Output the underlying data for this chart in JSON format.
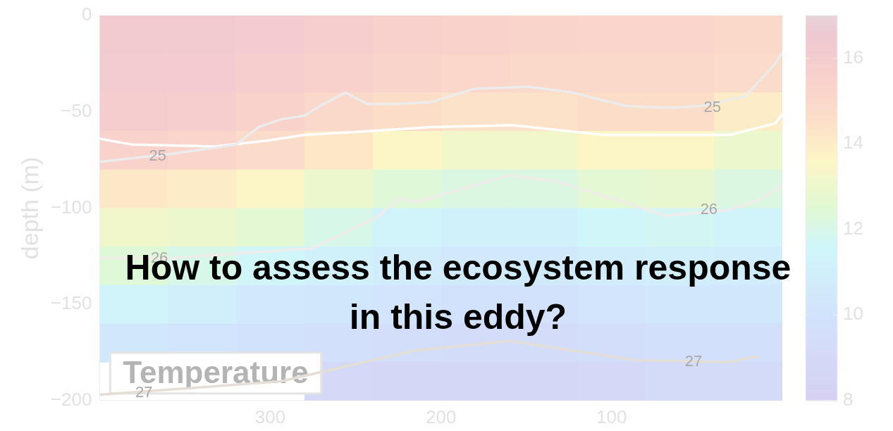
{
  "chart_data": {
    "type": "heatmap",
    "title": "How to assess the ecosystem response in this eddy?",
    "ylabel": "depth (m)",
    "annotations": [
      "Temperature",
      {
        "text": "25",
        "x": 366,
        "y": -73
      },
      {
        "text": "25",
        "x": 41,
        "y": -48
      },
      {
        "text": "26",
        "x": 365,
        "y": -126
      },
      {
        "text": "26",
        "x": 43,
        "y": -101
      },
      {
        "text": "27",
        "x": 374,
        "y": -196
      },
      {
        "text": "27",
        "x": 52,
        "y": -180
      }
    ],
    "x": [
      380,
      340,
      300,
      260,
      220,
      180,
      140,
      100,
      60,
      20
    ],
    "cells": [
      [
        16.2,
        16.2,
        16,
        15.8,
        15.6,
        15.4,
        15.3,
        15.2,
        15.2,
        15
      ],
      [
        16.1,
        16,
        15.8,
        15.6,
        15.3,
        15.1,
        15,
        15,
        15,
        14.8
      ],
      [
        15.9,
        15.8,
        15.4,
        15,
        14.6,
        14.4,
        14.4,
        14.6,
        14.6,
        14
      ],
      [
        15.4,
        15.2,
        14.8,
        14.2,
        13.6,
        13.2,
        13.2,
        13.6,
        13.6,
        13
      ],
      [
        14.2,
        14,
        13.6,
        13,
        12.4,
        12.2,
        12.2,
        12.6,
        12.8,
        12.2
      ],
      [
        13.2,
        13,
        12.6,
        12,
        11.4,
        11.2,
        11.2,
        11.6,
        11.8,
        11.4
      ],
      [
        12.4,
        12,
        11.6,
        11.2,
        10.8,
        10.6,
        10.6,
        10.8,
        11,
        10.8
      ],
      [
        11.4,
        11,
        10.6,
        10.4,
        10.2,
        10,
        10,
        10.2,
        10.4,
        10.4
      ],
      [
        10.4,
        10.2,
        10,
        9.8,
        9.6,
        9.4,
        9.4,
        9.6,
        9.8,
        9.8
      ],
      [
        null,
        null,
        null,
        9,
        8.8,
        8.8,
        8.8,
        9,
        9.2,
        9.2
      ]
    ],
    "clim": [
      8,
      17
    ],
    "cticks": [
      8,
      10,
      12,
      14,
      16
    ],
    "xlim": [
      400,
      0
    ],
    "xticks": [
      300,
      200,
      100
    ],
    "ylim": [
      -200,
      0
    ],
    "yticks": [
      -200,
      -150,
      -100,
      -50,
      0
    ],
    "series": [
      {
        "type": "line",
        "color": "#ececec",
        "x": [
          400,
          359,
          320,
          307,
          294,
          280,
          271,
          256,
          243,
          228,
          206,
          180,
          149,
          123,
          92,
          66,
          48,
          22,
          4,
          0
        ],
        "values": [
          -76,
          -72,
          -67,
          -58,
          -54,
          -52,
          -47,
          -40,
          -46,
          -46,
          -45,
          -38,
          -37,
          -40,
          -47,
          -48,
          -47,
          -42,
          -25,
          -19
        ]
      },
      {
        "type": "line",
        "color": "#ffffff",
        "x": [
          400,
          381,
          333,
          302,
          280,
          241,
          206,
          158,
          105,
          31,
          4,
          0
        ],
        "values": [
          -64,
          -67,
          -68,
          -65,
          -62,
          -60,
          -58,
          -57,
          -62,
          -62,
          -56,
          -51
        ]
      },
      {
        "type": "line",
        "color": "#f0ecea",
        "x": [
          400,
          359,
          276,
          238,
          224,
          215,
          160,
          133,
          96,
          69,
          32,
          14,
          0
        ],
        "values": [
          -126,
          -126,
          -121,
          -105,
          -95,
          -97,
          -83,
          -86,
          -96,
          -104,
          -101,
          -96,
          -88
        ]
      },
      {
        "type": "line",
        "color": "#e4ded6",
        "x": [
          400,
          294,
          215,
          160,
          86,
          32,
          14
        ],
        "values": [
          -197,
          -190,
          -174,
          -169,
          -179,
          -180,
          -177
        ]
      }
    ]
  }
}
